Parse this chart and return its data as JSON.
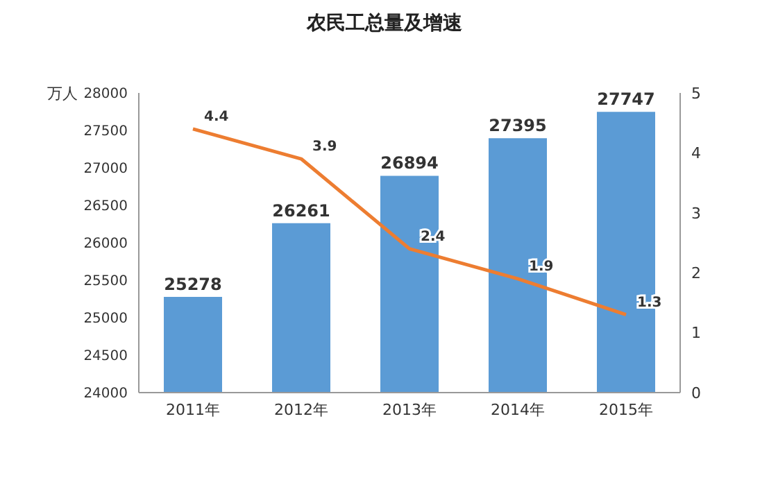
{
  "chart_data": {
    "type": "bar",
    "title": "农民工总量及增速",
    "ylabel": "万人",
    "categories": [
      "2011年",
      "2012年",
      "2013年",
      "2014年",
      "2015年"
    ],
    "series": [
      {
        "color": "#5b9bd5",
        "values": [
          25278,
          26261,
          26894,
          27395,
          27747
        ]
      },
      {
        "type": "line",
        "axis": "y2",
        "color": "#ed7d31",
        "values": [
          4.4,
          3.9,
          2.4,
          1.9,
          1.3
        ]
      }
    ],
    "ylim": [
      24000,
      28000
    ],
    "yticks": [
      24000,
      24500,
      25000,
      25500,
      26000,
      26500,
      27000,
      27500,
      28000
    ],
    "y2lim": [
      0,
      5
    ],
    "y2ticks": [
      0,
      1,
      2,
      3,
      4,
      5
    ],
    "data_labels": true,
    "grid": false,
    "legend": false,
    "marker": "none",
    "line_style": "solid"
  }
}
